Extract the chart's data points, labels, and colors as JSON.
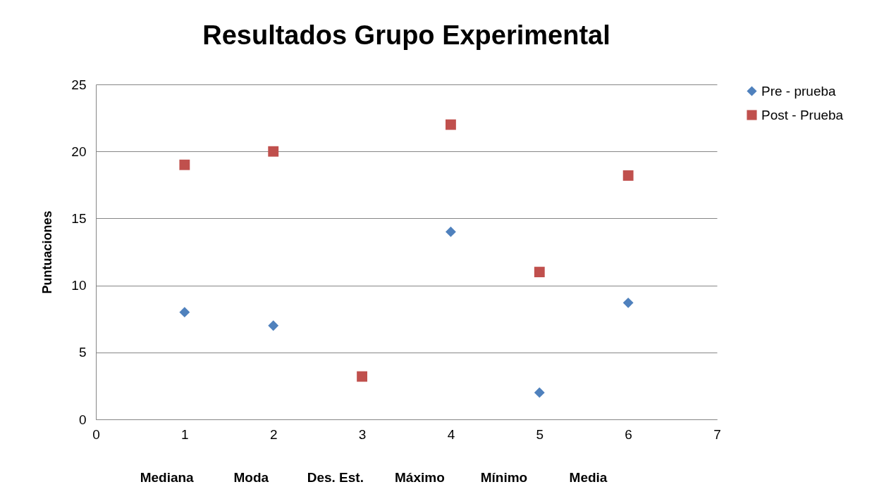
{
  "chart_data": {
    "type": "scatter",
    "title": "Resultados Grupo Experimental",
    "ylabel": "Puntuaciones",
    "x": [
      1,
      2,
      3,
      4,
      5,
      6
    ],
    "series": [
      {
        "name": "Pre - prueba",
        "color": "#4f81bd",
        "marker": "diamond",
        "values": [
          8,
          7,
          null,
          14,
          2,
          8.7
        ]
      },
      {
        "name": "Post - Prueba",
        "color": "#c0504d",
        "marker": "square",
        "values": [
          19,
          20,
          3.2,
          22,
          11,
          18.2
        ]
      }
    ],
    "xlim": [
      0,
      7
    ],
    "xticks": [
      0,
      1,
      2,
      3,
      4,
      5,
      6,
      7
    ],
    "ylim": [
      0,
      25
    ],
    "yticks": [
      0,
      5,
      10,
      15,
      20,
      25
    ],
    "grid": "y",
    "legend": "right",
    "annotations": [
      "Mediana",
      "Moda",
      "Des. Est.",
      "Máximo",
      "Mínimo",
      "Media"
    ]
  }
}
